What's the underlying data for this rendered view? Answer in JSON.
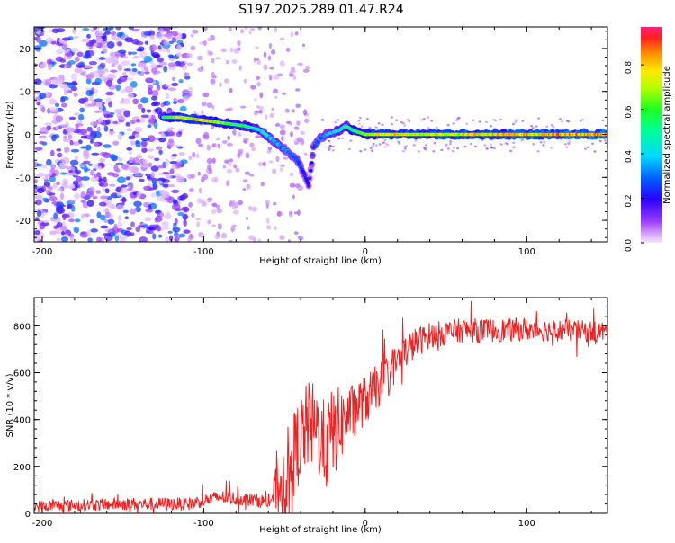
{
  "chart_data": [
    {
      "type": "heatmap",
      "title": "S197.2025.289.01.47.R24",
      "xlabel": "Height of straight line (km)",
      "ylabel": "Frequency (Hz)",
      "xlim": [
        -205,
        150
      ],
      "ylim": [
        -25,
        25
      ],
      "xticks": [
        -200,
        -100,
        0,
        100
      ],
      "xtick_labels": [
        "-200",
        "-100",
        "0",
        "100"
      ],
      "yticks": [
        -20,
        -10,
        0,
        10,
        20
      ],
      "ytick_labels": [
        "-20",
        "-10",
        "0",
        "10",
        "20"
      ],
      "colorbar": {
        "label": "Normalized spectral amplitude",
        "range": [
          0,
          0.97
        ],
        "ticks": [
          0.0,
          0.2,
          0.4,
          0.6,
          0.8
        ],
        "tick_labels": [
          "0.0",
          "0.2",
          "0.4",
          "0.6",
          "0.8"
        ]
      },
      "ridge": {
        "x": [
          -125,
          -115,
          -105,
          -95,
          -85,
          -75,
          -65,
          -55,
          -48,
          -42,
          -38,
          -35,
          -32,
          -28,
          -24,
          -20,
          -16,
          -12,
          -8,
          -4,
          0,
          10,
          30,
          60,
          100,
          150
        ],
        "y": [
          4,
          4,
          3.5,
          3,
          2.5,
          2,
          1,
          -2,
          -4,
          -6,
          -9,
          -12,
          -3,
          -1,
          0,
          0.5,
          1,
          2,
          1,
          0.5,
          0,
          0,
          0,
          0,
          0,
          0
        ],
        "amplitude": [
          0.6,
          0.8,
          0.85,
          0.8,
          0.7,
          0.6,
          0.5,
          0.4,
          0.35,
          0.3,
          0.25,
          0.2,
          0.3,
          0.35,
          0.4,
          0.45,
          0.5,
          0.55,
          0.6,
          0.65,
          0.7,
          0.9,
          0.8,
          0.85,
          0.9,
          0.95
        ]
      }
    },
    {
      "type": "line",
      "xlabel": "Height of straight line (km)",
      "ylabel": "SNR (10 * v/v)",
      "xlim": [
        -205,
        150
      ],
      "ylim": [
        0,
        920
      ],
      "xticks": [
        -200,
        -100,
        0,
        100
      ],
      "xtick_labels": [
        "-200",
        "-100",
        "0",
        "100"
      ],
      "yticks": [
        0,
        200,
        400,
        600,
        800
      ],
      "ytick_labels": [
        "0",
        "200",
        "400",
        "600",
        "800"
      ],
      "color": "#ee2222",
      "envelope": {
        "x": [
          -205,
          -150,
          -110,
          -90,
          -60,
          -50,
          -45,
          -40,
          -35,
          -30,
          -25,
          -20,
          -15,
          -10,
          -5,
          0,
          5,
          10,
          15,
          20,
          25,
          30,
          35,
          40,
          50,
          60,
          80,
          100,
          120,
          150
        ],
        "y": [
          30,
          40,
          40,
          70,
          50,
          150,
          240,
          320,
          380,
          360,
          280,
          340,
          380,
          420,
          460,
          480,
          520,
          560,
          600,
          650,
          690,
          720,
          740,
          760,
          770,
          780,
          780,
          785,
          780,
          775
        ]
      },
      "noise": {
        "x": [
          -205,
          -60,
          -50,
          -20,
          -10,
          20,
          40,
          150
        ],
        "amp": [
          25,
          30,
          180,
          200,
          120,
          80,
          55,
          45
        ]
      }
    }
  ]
}
